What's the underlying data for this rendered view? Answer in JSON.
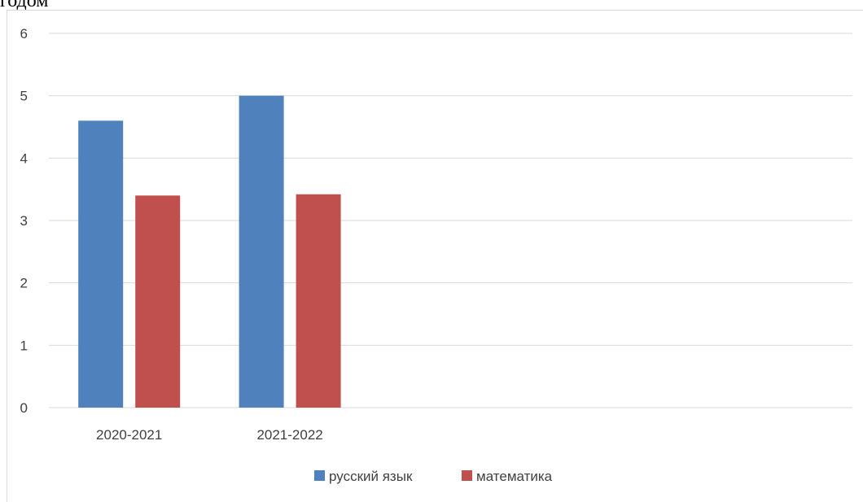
{
  "page": {
    "top_text": "годом"
  },
  "chart_data": {
    "type": "bar",
    "categories": [
      "2020-2021",
      "2021-2022",
      "",
      "",
      ""
    ],
    "series": [
      {
        "name": "русский язык",
        "values": [
          4.6,
          5.0,
          null,
          null,
          null
        ],
        "color": "#4f81bd"
      },
      {
        "name": "математика",
        "values": [
          3.4,
          3.42,
          null,
          null,
          null
        ],
        "color": "#c0504d"
      }
    ],
    "y_ticks": [
      0,
      1,
      2,
      3,
      4,
      5,
      6
    ],
    "ylim": [
      0,
      6
    ],
    "grid": true,
    "legend_position": "bottom",
    "title": "",
    "xlabel": "",
    "ylabel": ""
  }
}
